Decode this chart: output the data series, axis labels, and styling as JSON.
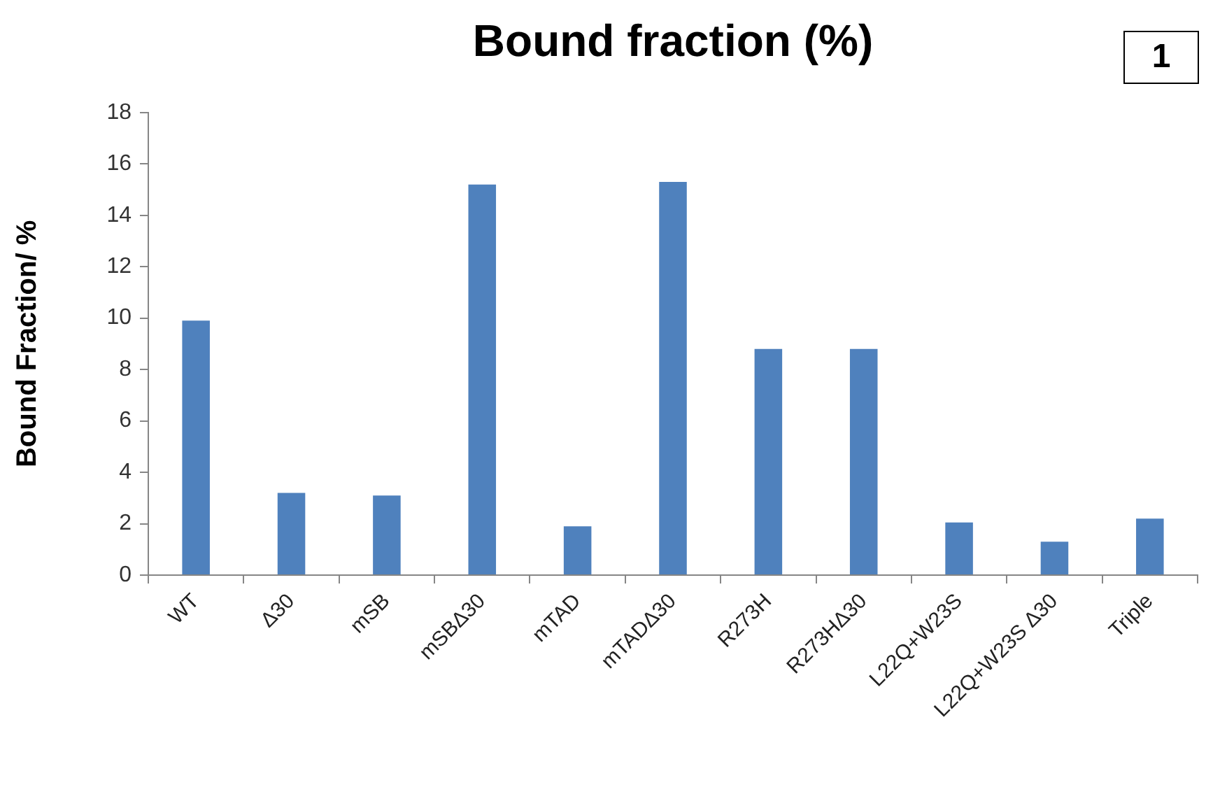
{
  "chart_data": {
    "type": "bar",
    "title": "Bound fraction (%)",
    "ylabel": "Bound Fraction/ %",
    "annotations": [
      "1"
    ],
    "categories": [
      "WT",
      "Δ30",
      "mSB",
      "mSBΔ30",
      "mTAD",
      "mTADΔ30",
      "R273H",
      "R273HΔ30",
      "L22Q+W23S",
      "L22Q+W23S Δ30",
      "Triple"
    ],
    "values": [
      9.9,
      3.2,
      3.1,
      15.2,
      1.9,
      15.3,
      8.8,
      8.8,
      2.05,
      1.3,
      2.2
    ],
    "color": "#4f81bd",
    "ylim": [
      0,
      18
    ],
    "yticks": [
      0,
      2,
      4,
      6,
      8,
      10,
      12,
      14,
      16,
      18
    ],
    "grid": false,
    "legend": false
  }
}
